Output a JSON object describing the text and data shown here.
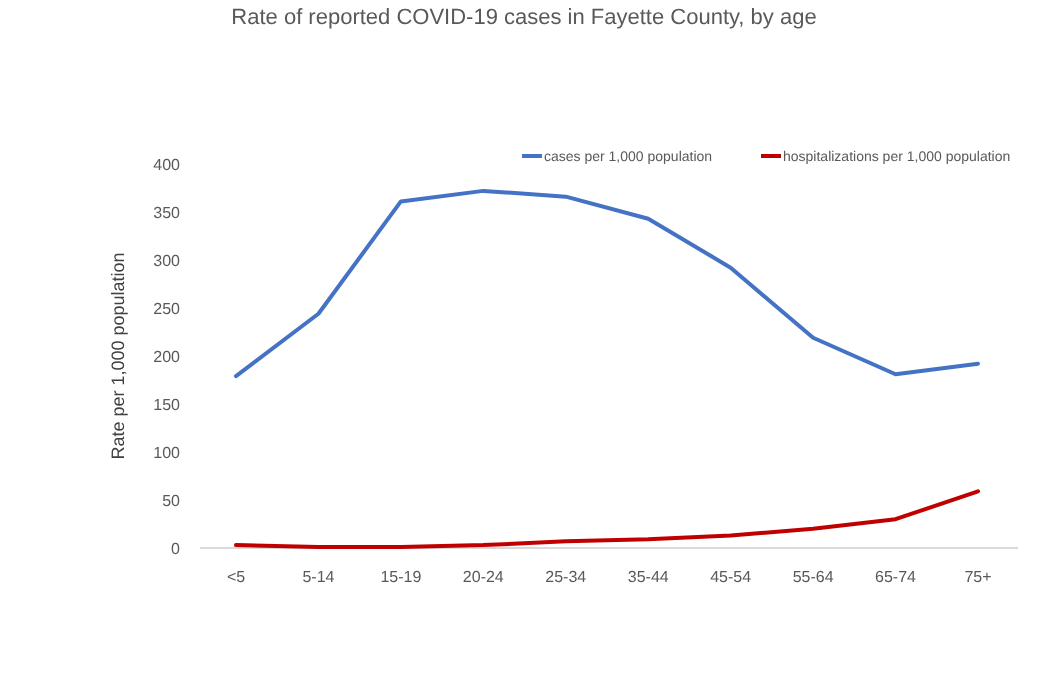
{
  "chart_data": {
    "type": "line",
    "title": "Rate of reported COVID-19 cases in Fayette County, by age",
    "ylabel": "Rate per 1,000 population",
    "categories": [
      "<5",
      "5-14",
      "15-19",
      "20-24",
      "25-34",
      "35-44",
      "45-54",
      "55-64",
      "65-74",
      "75+"
    ],
    "series": [
      {
        "name": "cases per 1,000 population",
        "color": "#4472c4",
        "values": [
          179,
          244,
          361,
          372,
          366,
          343,
          292,
          219,
          181,
          192
        ]
      },
      {
        "name": "hospitalizations per 1,000 population",
        "color": "#c00000",
        "values": [
          3,
          1,
          1,
          3,
          7,
          9,
          13,
          20,
          30,
          59
        ]
      }
    ],
    "ylim": [
      0,
      400
    ],
    "yticks": [
      0,
      50,
      100,
      150,
      200,
      250,
      300,
      350,
      400
    ],
    "grid": false,
    "legend": "top right",
    "marker": "none",
    "line_style": "solid"
  }
}
